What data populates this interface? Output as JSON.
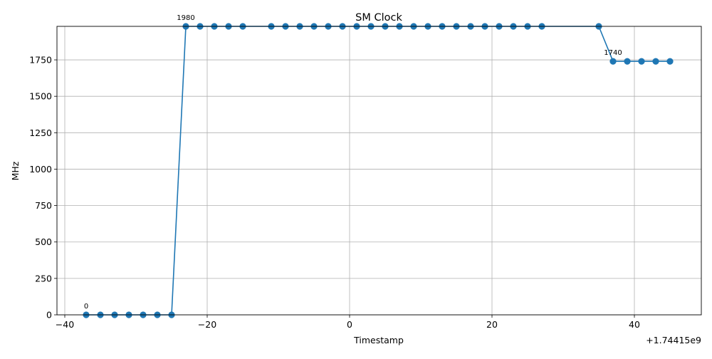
{
  "chart_data": {
    "type": "line",
    "title": "SM Clock",
    "xlabel": "Timestamp",
    "ylabel": "MHz",
    "x_offset_label": "+1.74415e9",
    "xlim": [
      -41.1,
      49.4
    ],
    "ylim": [
      0,
      1980
    ],
    "x_ticks": [
      -40,
      -20,
      0,
      20,
      40
    ],
    "x_tick_labels": [
      "−40",
      "−20",
      "0",
      "20",
      "40"
    ],
    "y_ticks": [
      0,
      250,
      500,
      750,
      1000,
      1250,
      1500,
      1750
    ],
    "y_tick_labels": [
      "0",
      "250",
      "500",
      "750",
      "1000",
      "1250",
      "1500",
      "1750"
    ],
    "grid": true,
    "color": "#1f77b4",
    "series": [
      {
        "line_x": [
          -37,
          -35,
          -33,
          -31,
          -29,
          -27,
          -25,
          -23,
          -21,
          -19,
          -17,
          -15,
          -11,
          -9,
          -7,
          -5,
          -3,
          -1,
          1,
          3,
          5,
          7,
          9,
          11,
          13,
          15,
          17,
          19,
          21,
          23,
          25,
          27,
          33,
          35,
          37,
          39,
          41,
          43,
          45
        ],
        "line_y": [
          0,
          0,
          0,
          0,
          0,
          0,
          0,
          1980,
          1980,
          1980,
          1980,
          1980,
          1980,
          1980,
          1980,
          1980,
          1980,
          1980,
          1980,
          1980,
          1980,
          1980,
          1980,
          1980,
          1980,
          1980,
          1980,
          1980,
          1980,
          1980,
          1980,
          1980,
          1980,
          1980,
          1740,
          1740,
          1740,
          1740,
          1740
        ],
        "marker_x": [
          -37,
          -35,
          -33,
          -31,
          -29,
          -27,
          -25,
          -23,
          -21,
          -19,
          -17,
          -15,
          -11,
          -9,
          -7,
          -5,
          -3,
          -1,
          1,
          3,
          5,
          7,
          9,
          11,
          13,
          15,
          17,
          19,
          21,
          23,
          25,
          27,
          35,
          37,
          39,
          41,
          43,
          45
        ],
        "marker_y": [
          0,
          0,
          0,
          0,
          0,
          0,
          0,
          1980,
          1980,
          1980,
          1980,
          1980,
          1980,
          1980,
          1980,
          1980,
          1980,
          1980,
          1980,
          1980,
          1980,
          1980,
          1980,
          1980,
          1980,
          1980,
          1980,
          1980,
          1980,
          1980,
          1980,
          1980,
          1980,
          1740,
          1740,
          1740,
          1740,
          1740
        ]
      }
    ],
    "annotations": [
      {
        "text": "0",
        "x": -37,
        "y": 0
      },
      {
        "text": "1980",
        "x": -23,
        "y": 1980
      },
      {
        "text": "1740",
        "x": 37,
        "y": 1740
      }
    ]
  }
}
